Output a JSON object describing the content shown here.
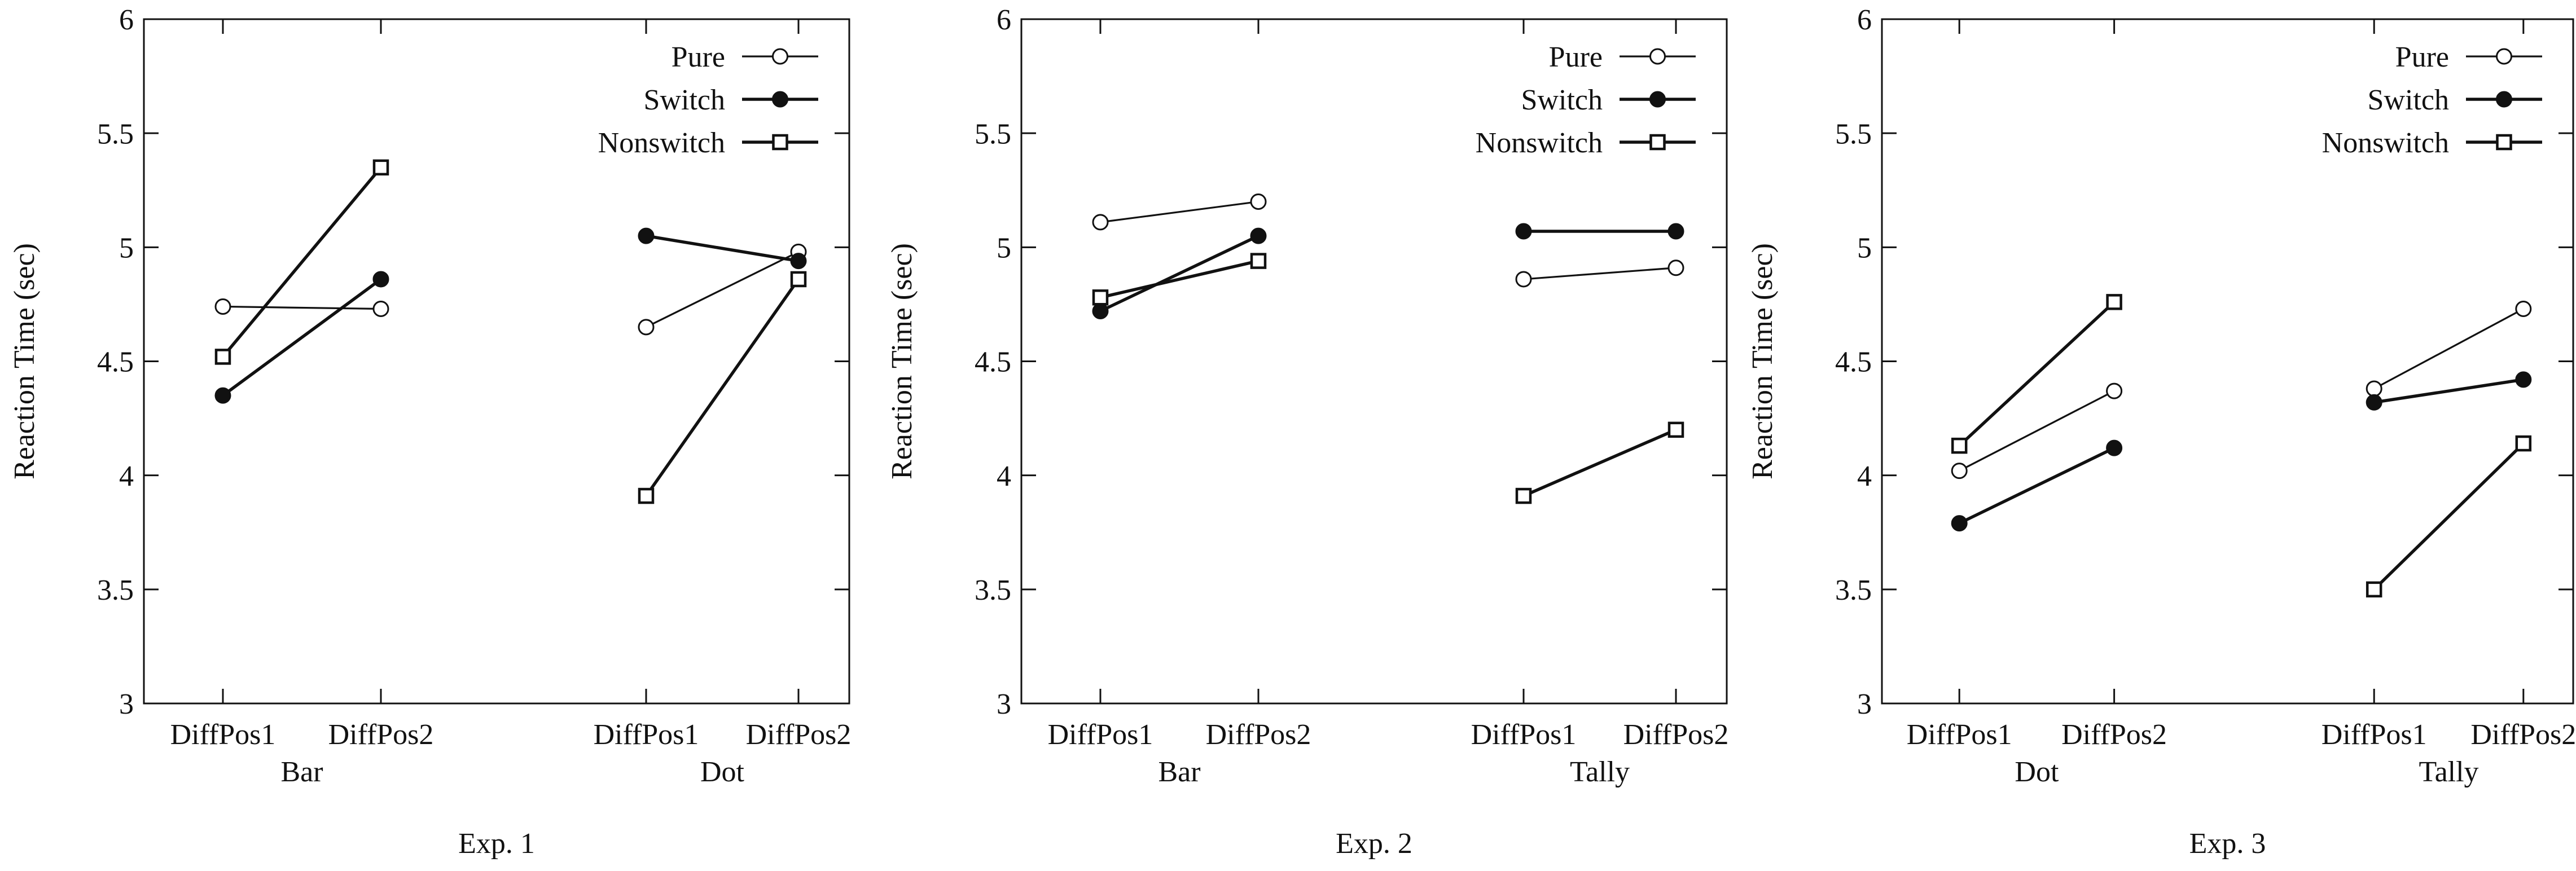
{
  "chart_data": [
    {
      "type": "line",
      "caption": "Exp. 1",
      "ylabel": "Reaction Time (sec)",
      "ylim": [
        3,
        6
      ],
      "yticks": [
        "3",
        "3.5",
        "4",
        "4.5",
        "5",
        "5.5",
        "6"
      ],
      "grid": false,
      "legend_position": "top-right",
      "groups": [
        {
          "name": "Bar",
          "x": [
            "DiffPos1",
            "DiffPos2"
          ]
        },
        {
          "name": "Dot",
          "x": [
            "DiffPos1",
            "DiffPos2"
          ]
        }
      ],
      "series": [
        {
          "name": "Pure",
          "marker": "open-circle",
          "values": [
            [
              4.74,
              4.73
            ],
            [
              4.65,
              4.98
            ]
          ]
        },
        {
          "name": "Switch",
          "marker": "filled-circle",
          "values": [
            [
              4.35,
              4.86
            ],
            [
              5.05,
              4.94
            ]
          ]
        },
        {
          "name": "Nonswitch",
          "marker": "open-square",
          "values": [
            [
              4.52,
              5.35
            ],
            [
              3.91,
              4.86
            ]
          ]
        }
      ]
    },
    {
      "type": "line",
      "caption": "Exp. 2",
      "ylabel": "Reaction Time (sec)",
      "ylim": [
        3,
        6
      ],
      "yticks": [
        "3",
        "3.5",
        "4",
        "4.5",
        "5",
        "5.5",
        "6"
      ],
      "grid": false,
      "legend_position": "top-right",
      "groups": [
        {
          "name": "Bar",
          "x": [
            "DiffPos1",
            "DiffPos2"
          ]
        },
        {
          "name": "Tally",
          "x": [
            "DiffPos1",
            "DiffPos2"
          ]
        }
      ],
      "series": [
        {
          "name": "Pure",
          "marker": "open-circle",
          "values": [
            [
              5.11,
              5.2
            ],
            [
              4.86,
              4.91
            ]
          ]
        },
        {
          "name": "Switch",
          "marker": "filled-circle",
          "values": [
            [
              4.72,
              5.05
            ],
            [
              5.07,
              5.07
            ]
          ]
        },
        {
          "name": "Nonswitch",
          "marker": "open-square",
          "values": [
            [
              4.78,
              4.94
            ],
            [
              3.91,
              4.2
            ]
          ]
        }
      ]
    },
    {
      "type": "line",
      "caption": "Exp. 3",
      "ylabel": "Reaction Time (sec)",
      "ylim": [
        3,
        6
      ],
      "yticks": [
        "3",
        "3.5",
        "4",
        "4.5",
        "5",
        "5.5",
        "6"
      ],
      "grid": false,
      "legend_position": "top-right",
      "groups": [
        {
          "name": "Dot",
          "x": [
            "DiffPos1",
            "DiffPos2"
          ]
        },
        {
          "name": "Tally",
          "x": [
            "DiffPos1",
            "DiffPos2"
          ]
        }
      ],
      "series": [
        {
          "name": "Pure",
          "marker": "open-circle",
          "values": [
            [
              4.02,
              4.37
            ],
            [
              4.38,
              4.73
            ]
          ]
        },
        {
          "name": "Switch",
          "marker": "filled-circle",
          "values": [
            [
              3.79,
              4.12
            ],
            [
              4.32,
              4.42
            ]
          ]
        },
        {
          "name": "Nonswitch",
          "marker": "open-square",
          "values": [
            [
              4.13,
              4.76
            ],
            [
              3.5,
              4.14
            ]
          ]
        }
      ]
    }
  ]
}
